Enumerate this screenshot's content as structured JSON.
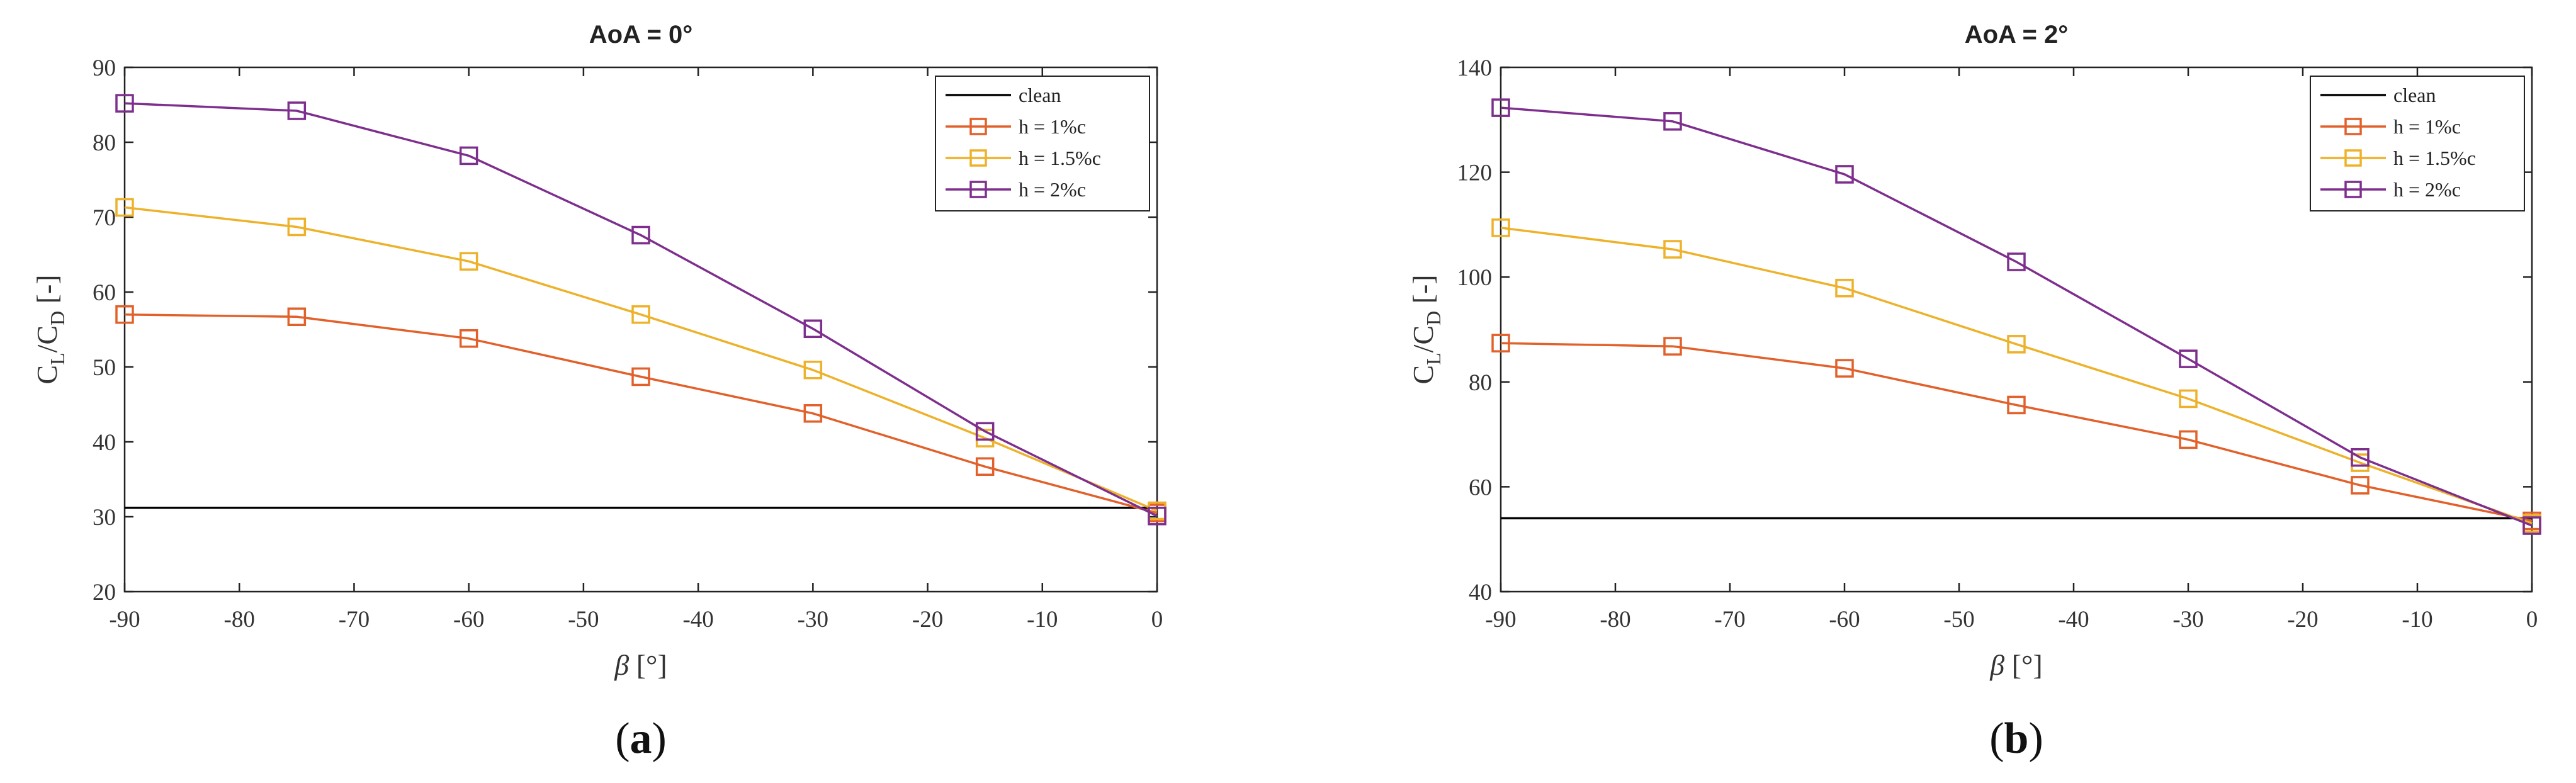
{
  "chart_data": [
    {
      "type": "line",
      "title": "AoA = 0°",
      "panel_label": {
        "open": "(",
        "letter": "a",
        "close": ")"
      },
      "xlabel": {
        "symbol": "β",
        "unit": " [°]"
      },
      "ylabel": {
        "c1": "C",
        "s1": "L",
        "slash": "/C",
        "s2": "D",
        "unit": " [-]"
      },
      "xlim": [
        -90,
        0
      ],
      "ylim": [
        20,
        90
      ],
      "xticks": [
        -90,
        -80,
        -70,
        -60,
        -50,
        -40,
        -30,
        -20,
        -10,
        0
      ],
      "yticks": [
        20,
        30,
        40,
        50,
        60,
        70,
        80,
        90
      ],
      "x": [
        -90,
        -75,
        -60,
        -45,
        -30,
        -15,
        0
      ],
      "legend_position": "top-right",
      "series": [
        {
          "name": "clean",
          "color": "#000000",
          "marker": "none",
          "constant": 31.2
        },
        {
          "name": "h = 1%c",
          "color": "#E2602A",
          "marker": "square",
          "values": [
            57.0,
            56.7,
            53.8,
            48.7,
            43.8,
            36.7,
            30.5
          ]
        },
        {
          "name": "h = 1.5%c",
          "color": "#EDB22A",
          "marker": "square",
          "values": [
            71.3,
            68.7,
            64.1,
            57.0,
            49.6,
            40.5,
            30.8
          ]
        },
        {
          "name": "h = 2%c",
          "color": "#7E2F8E",
          "marker": "square",
          "values": [
            85.2,
            84.2,
            78.2,
            67.6,
            55.1,
            41.4,
            30.1
          ]
        }
      ]
    },
    {
      "type": "line",
      "title": "AoA = 2°",
      "panel_label": {
        "open": "(",
        "letter": "b",
        "close": ")"
      },
      "xlabel": {
        "symbol": "β",
        "unit": " [°]"
      },
      "ylabel": {
        "c1": "C",
        "s1": "L",
        "slash": "/C",
        "s2": "D",
        "unit": " [-]"
      },
      "xlim": [
        -90,
        0
      ],
      "ylim": [
        40,
        140
      ],
      "xticks": [
        -90,
        -80,
        -70,
        -60,
        -50,
        -40,
        -30,
        -20,
        -10,
        0
      ],
      "yticks": [
        40,
        60,
        80,
        100,
        120,
        140
      ],
      "x": [
        -90,
        -75,
        -60,
        -45,
        -30,
        -15,
        0
      ],
      "legend_position": "top-right",
      "series": [
        {
          "name": "clean",
          "color": "#000000",
          "marker": "none",
          "constant": 54.0
        },
        {
          "name": "h = 1%c",
          "color": "#E2602A",
          "marker": "square",
          "values": [
            87.4,
            86.8,
            82.6,
            75.6,
            69.0,
            60.3,
            53.5
          ]
        },
        {
          "name": "h = 1.5%c",
          "color": "#EDB22A",
          "marker": "square",
          "values": [
            109.4,
            105.3,
            97.9,
            87.2,
            76.8,
            64.6,
            53.0
          ]
        },
        {
          "name": "h = 2%c",
          "color": "#7E2F8E",
          "marker": "square",
          "values": [
            132.3,
            129.7,
            119.6,
            102.9,
            84.4,
            65.6,
            52.6
          ]
        }
      ]
    }
  ]
}
